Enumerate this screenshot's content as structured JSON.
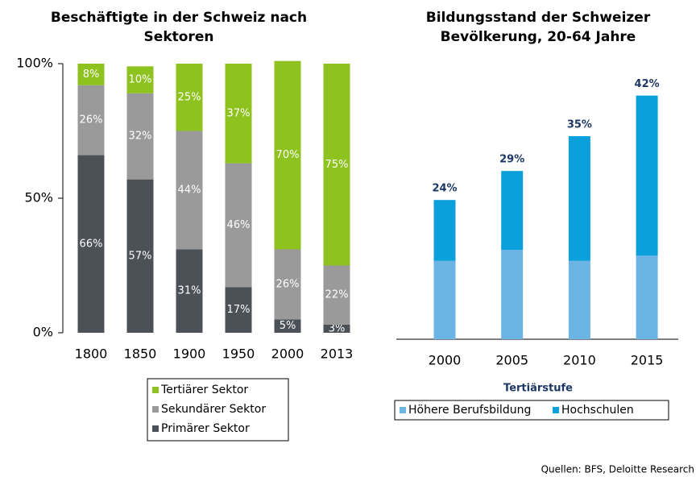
{
  "chart_data": [
    {
      "type": "bar",
      "stacked": true,
      "title": [
        "Beschäftigte in der Schweiz nach",
        "Sektoren"
      ],
      "categories": [
        "1800",
        "1850",
        "1900",
        "1950",
        "2000",
        "2013"
      ],
      "series": [
        {
          "name": "Primärer Sektor",
          "color": "#4c5057",
          "values": [
            66,
            57,
            31,
            17,
            5,
            3
          ],
          "value_labels": [
            "66%",
            "57%",
            "31%",
            "17%",
            "5%",
            "3%"
          ]
        },
        {
          "name": "Sekundärer Sektor",
          "color": "#9a9a9b",
          "values": [
            26,
            32,
            44,
            46,
            26,
            22
          ],
          "value_labels": [
            "26%",
            "32%",
            "44%",
            "46%",
            "26%",
            "22%"
          ]
        },
        {
          "name": "Tertiärer Sektor",
          "color": "#8dc21f",
          "values": [
            8,
            10,
            25,
            37,
            70,
            75
          ],
          "value_labels": [
            "8%",
            "10%",
            "25%",
            "37%",
            "70%",
            "75%"
          ]
        }
      ],
      "ylim": [
        0,
        100
      ],
      "yticks": [
        {
          "value": 0,
          "label": "0%"
        },
        {
          "value": 50,
          "label": "50%"
        },
        {
          "value": 100,
          "label": "100%"
        }
      ],
      "legend": "below"
    },
    {
      "type": "bar",
      "stacked": true,
      "title": [
        "Bildungsstand der Schweizer",
        "Bevölkerung, 20-64 Jahre"
      ],
      "categories": [
        "2000",
        "2005",
        "2010",
        "2015"
      ],
      "x_label": "Tertiärstufe",
      "series": [
        {
          "name": "Höhere Berufsbildung",
          "color": "#6cb4e4",
          "values": [
            13.5,
            15.4,
            13.5,
            14.4
          ]
        },
        {
          "name": "Hochschulen",
          "color": "#0ba0dc",
          "values": [
            10.5,
            13.6,
            21.5,
            27.6
          ]
        }
      ],
      "totals": [
        24,
        29,
        35,
        42
      ],
      "total_labels": [
        "24%",
        "29%",
        "35%",
        "42%"
      ],
      "legend": "below"
    }
  ],
  "source": "Quellen: BFS, Deloitte Research"
}
